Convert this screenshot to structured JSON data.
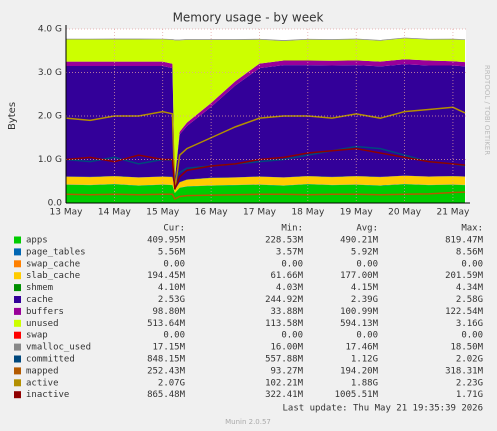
{
  "chart_data": {
    "type": "stacked-area",
    "title": "Memory usage - by week",
    "y_label": "Bytes",
    "side_text": "RRDTOOL / TOBI OETIKER",
    "footer_update": "Last update: Thu May 21 19:35:39 2026",
    "footer_version": "Munin 2.0.57",
    "grid": true,
    "xlim": [
      0,
      8.27
    ],
    "xticks": [
      {
        "value": 0,
        "label": "13 May"
      },
      {
        "value": 1,
        "label": "14 May"
      },
      {
        "value": 2,
        "label": "15 May"
      },
      {
        "value": 3,
        "label": "16 May"
      },
      {
        "value": 4,
        "label": "17 May"
      },
      {
        "value": 5,
        "label": "18 May"
      },
      {
        "value": 6,
        "label": "19 May"
      },
      {
        "value": 7,
        "label": "20 May"
      },
      {
        "value": 8,
        "label": "21 May"
      }
    ],
    "ylim": [
      0,
      4000000000
    ],
    "yticks": [
      {
        "value": 0,
        "label": "0.0"
      },
      {
        "value": 1000000000,
        "label": "1.0 G"
      },
      {
        "value": 2000000000,
        "label": "2.0 G"
      },
      {
        "value": 3000000000,
        "label": "3.0 G"
      },
      {
        "value": 4000000000,
        "label": "4.0 G"
      }
    ],
    "x": [
      0,
      0.5,
      1,
      1.5,
      2,
      2.2,
      2.25,
      2.35,
      2.5,
      3,
      3.5,
      4,
      4.5,
      5,
      5.5,
      6,
      6.5,
      7,
      7.5,
      8,
      8.25
    ],
    "legend_headers": [
      "Cur:",
      "Min:",
      "Avg:",
      "Max:"
    ],
    "series": [
      {
        "name": "apps",
        "color": "#00cc00",
        "kind": "area",
        "cur": "409.95M",
        "min": "228.53M",
        "avg": "490.21M",
        "max": "819.47M",
        "values": [
          420000000.0,
          410000000.0,
          430000000.0,
          400000000.0,
          420000000.0,
          410000000.0,
          230000000.0,
          350000000.0,
          380000000.0,
          400000000.0,
          410000000.0,
          420000000.0,
          400000000.0,
          430000000.0,
          410000000.0,
          420000000.0,
          400000000.0,
          430000000.0,
          410000000.0,
          420000000.0,
          410000000.0
        ]
      },
      {
        "name": "page_tables",
        "color": "#0066b3",
        "kind": "area",
        "cur": "5.56M",
        "min": "3.57M",
        "avg": "5.92M",
        "max": "8.56M",
        "values": [
          5600000.0,
          5700000.0,
          5800000.0,
          5900000.0,
          6000000.0,
          5900000.0,
          3600000.0,
          4500000.0,
          5000000.0,
          5500000.0,
          5800000.0,
          6000000.0,
          6100000.0,
          6200000.0,
          6000000.0,
          5900000.0,
          6100000.0,
          6000000.0,
          5800000.0,
          5700000.0,
          5600000.0
        ]
      },
      {
        "name": "swap_cache",
        "color": "#ff8000",
        "kind": "area",
        "cur": "0.00",
        "min": "0.00",
        "avg": "0.00",
        "max": "0.00",
        "values": [
          0,
          0,
          0,
          0,
          0,
          0,
          0,
          0,
          0,
          0,
          0,
          0,
          0,
          0,
          0,
          0,
          0,
          0,
          0,
          0,
          0
        ]
      },
      {
        "name": "slab_cache",
        "color": "#ffcc00",
        "kind": "area",
        "cur": "194.45M",
        "min": "61.66M",
        "avg": "177.00M",
        "max": "201.59M",
        "values": [
          180000000.0,
          180000000.0,
          180000000.0,
          180000000.0,
          180000000.0,
          180000000.0,
          62000000.0,
          120000000.0,
          150000000.0,
          170000000.0,
          170000000.0,
          180000000.0,
          180000000.0,
          180000000.0,
          180000000.0,
          190000000.0,
          190000000.0,
          190000000.0,
          190000000.0,
          190000000.0,
          190000000.0
        ]
      },
      {
        "name": "shmem",
        "color": "#008f00",
        "kind": "area",
        "cur": "4.10M",
        "min": "4.03M",
        "avg": "4.15M",
        "max": "4.34M",
        "values": [
          4100000.0,
          4100000.0,
          4200000.0,
          4100000.0,
          4200000.0,
          4100000.0,
          4000000.0,
          4100000.0,
          4100000.0,
          4200000.0,
          4100000.0,
          4200000.0,
          4300000.0,
          4200000.0,
          4100000.0,
          4200000.0,
          4100000.0,
          4200000.0,
          4100000.0,
          4100000.0,
          4100000.0
        ]
      },
      {
        "name": "cache",
        "color": "#330099",
        "kind": "area",
        "cur": "2.53G",
        "min": "244.92M",
        "avg": "2.39G",
        "max": "2.58G",
        "values": [
          2540000000.0,
          2550000000.0,
          2530000000.0,
          2560000000.0,
          2540000000.0,
          2500000000.0,
          245000000.0,
          1100000000.0,
          1230000000.0,
          1630000000.0,
          2110000000.0,
          2490000000.0,
          2580000000.0,
          2550000000.0,
          2560000000.0,
          2550000000.0,
          2540000000.0,
          2560000000.0,
          2550000000.0,
          2540000000.0,
          2530000000.0
        ]
      },
      {
        "name": "buffers",
        "color": "#990099",
        "kind": "area",
        "cur": "98.80M",
        "min": "33.88M",
        "avg": "100.99M",
        "max": "122.54M",
        "values": [
          100000000.0,
          100000000.0,
          100000000.0,
          100000000.0,
          100000000.0,
          100000000.0,
          34000000.0,
          60000000.0,
          80000000.0,
          90000000.0,
          100000000.0,
          105000000.0,
          105000000.0,
          105000000.0,
          110000000.0,
          110000000.0,
          110000000.0,
          115000000.0,
          115000000.0,
          100000000.0,
          99000000.0
        ]
      },
      {
        "name": "unused",
        "color": "#ccff00",
        "kind": "area",
        "cur": "513.64M",
        "min": "113.58M",
        "avg": "594.13M",
        "max": "3.16G",
        "values": [
          510000000.0,
          510000000.0,
          510000000.0,
          510000000.0,
          510000000.0,
          550000000.0,
          3160000000.0,
          2100000000.0,
          1900000000.0,
          1450000000.0,
          950000000.0,
          550000000.0,
          450000000.0,
          480000000.0,
          480000000.0,
          480000000.0,
          480000000.0,
          480000000.0,
          480000000.0,
          500000000.0,
          510000000.0
        ]
      },
      {
        "name": "swap",
        "color": "#ff0000",
        "kind": "area",
        "cur": "0.00",
        "min": "0.00",
        "avg": "0.00",
        "max": "0.00",
        "values": [
          0,
          0,
          0,
          0,
          0,
          0,
          0,
          0,
          0,
          0,
          0,
          0,
          0,
          0,
          0,
          0,
          0,
          0,
          0,
          0,
          0
        ]
      },
      {
        "name": "vmalloc_used",
        "color": "#888888",
        "kind": "area",
        "cur": "17.15M",
        "min": "16.00M",
        "avg": "17.46M",
        "max": "18.50M",
        "values": [
          17000000.0,
          17000000.0,
          17500000.0,
          17500000.0,
          17000000.0,
          17000000.0,
          16000000.0,
          16500000.0,
          17000000.0,
          17500000.0,
          17500000.0,
          18000000.0,
          18000000.0,
          17500000.0,
          17500000.0,
          18000000.0,
          17500000.0,
          17500000.0,
          17000000.0,
          17000000.0,
          17000000.0
        ]
      },
      {
        "name": "committed",
        "color": "#00487d",
        "kind": "line",
        "cur": "848.15M",
        "min": "557.88M",
        "avg": "1.12G",
        "max": "2.02G",
        "values": [
          1000000000.0,
          950000000.0,
          1050000000.0,
          900000000.0,
          1000000000.0,
          980000000.0,
          560000000.0,
          700000000.0,
          800000000.0,
          850000000.0,
          900000000.0,
          950000000.0,
          1000000000.0,
          1100000000.0,
          1200000000.0,
          1300000000.0,
          1250000000.0,
          1100000000.0,
          950000000.0,
          900000000.0,
          850000000.0
        ]
      },
      {
        "name": "mapped",
        "color": "#b35a00",
        "kind": "line",
        "cur": "252.43M",
        "min": "93.27M",
        "avg": "194.20M",
        "max": "318.31M",
        "values": [
          200000000.0,
          190000000.0,
          200000000.0,
          190000000.0,
          200000000.0,
          200000000.0,
          93000000.0,
          150000000.0,
          170000000.0,
          180000000.0,
          190000000.0,
          200000000.0,
          200000000.0,
          190000000.0,
          200000000.0,
          200000000.0,
          190000000.0,
          200000000.0,
          210000000.0,
          240000000.0,
          250000000.0
        ]
      },
      {
        "name": "active",
        "color": "#b38f00",
        "kind": "line",
        "cur": "2.07G",
        "min": "102.21M",
        "avg": "1.88G",
        "max": "2.23G",
        "values": [
          1950000000.0,
          1900000000.0,
          2000000000.0,
          2000000000.0,
          2100000000.0,
          2050000000.0,
          300000000.0,
          1100000000.0,
          1250000000.0,
          1500000000.0,
          1750000000.0,
          1950000000.0,
          2000000000.0,
          2000000000.0,
          1950000000.0,
          2050000000.0,
          1950000000.0,
          2100000000.0,
          2150000000.0,
          2200000000.0,
          2070000000.0
        ]
      },
      {
        "name": "inactive",
        "color": "#8f0000",
        "kind": "line",
        "cur": "865.48M",
        "min": "322.41M",
        "avg": "1005.51M",
        "max": "1.71G",
        "values": [
          1000000000.0,
          1050000000.0,
          950000000.0,
          1100000000.0,
          1000000000.0,
          1000000000.0,
          320000000.0,
          600000000.0,
          750000000.0,
          850000000.0,
          900000000.0,
          1000000000.0,
          1050000000.0,
          1150000000.0,
          1200000000.0,
          1250000000.0,
          1150000000.0,
          1050000000.0,
          950000000.0,
          900000000.0,
          870000000.0
        ]
      }
    ]
  }
}
